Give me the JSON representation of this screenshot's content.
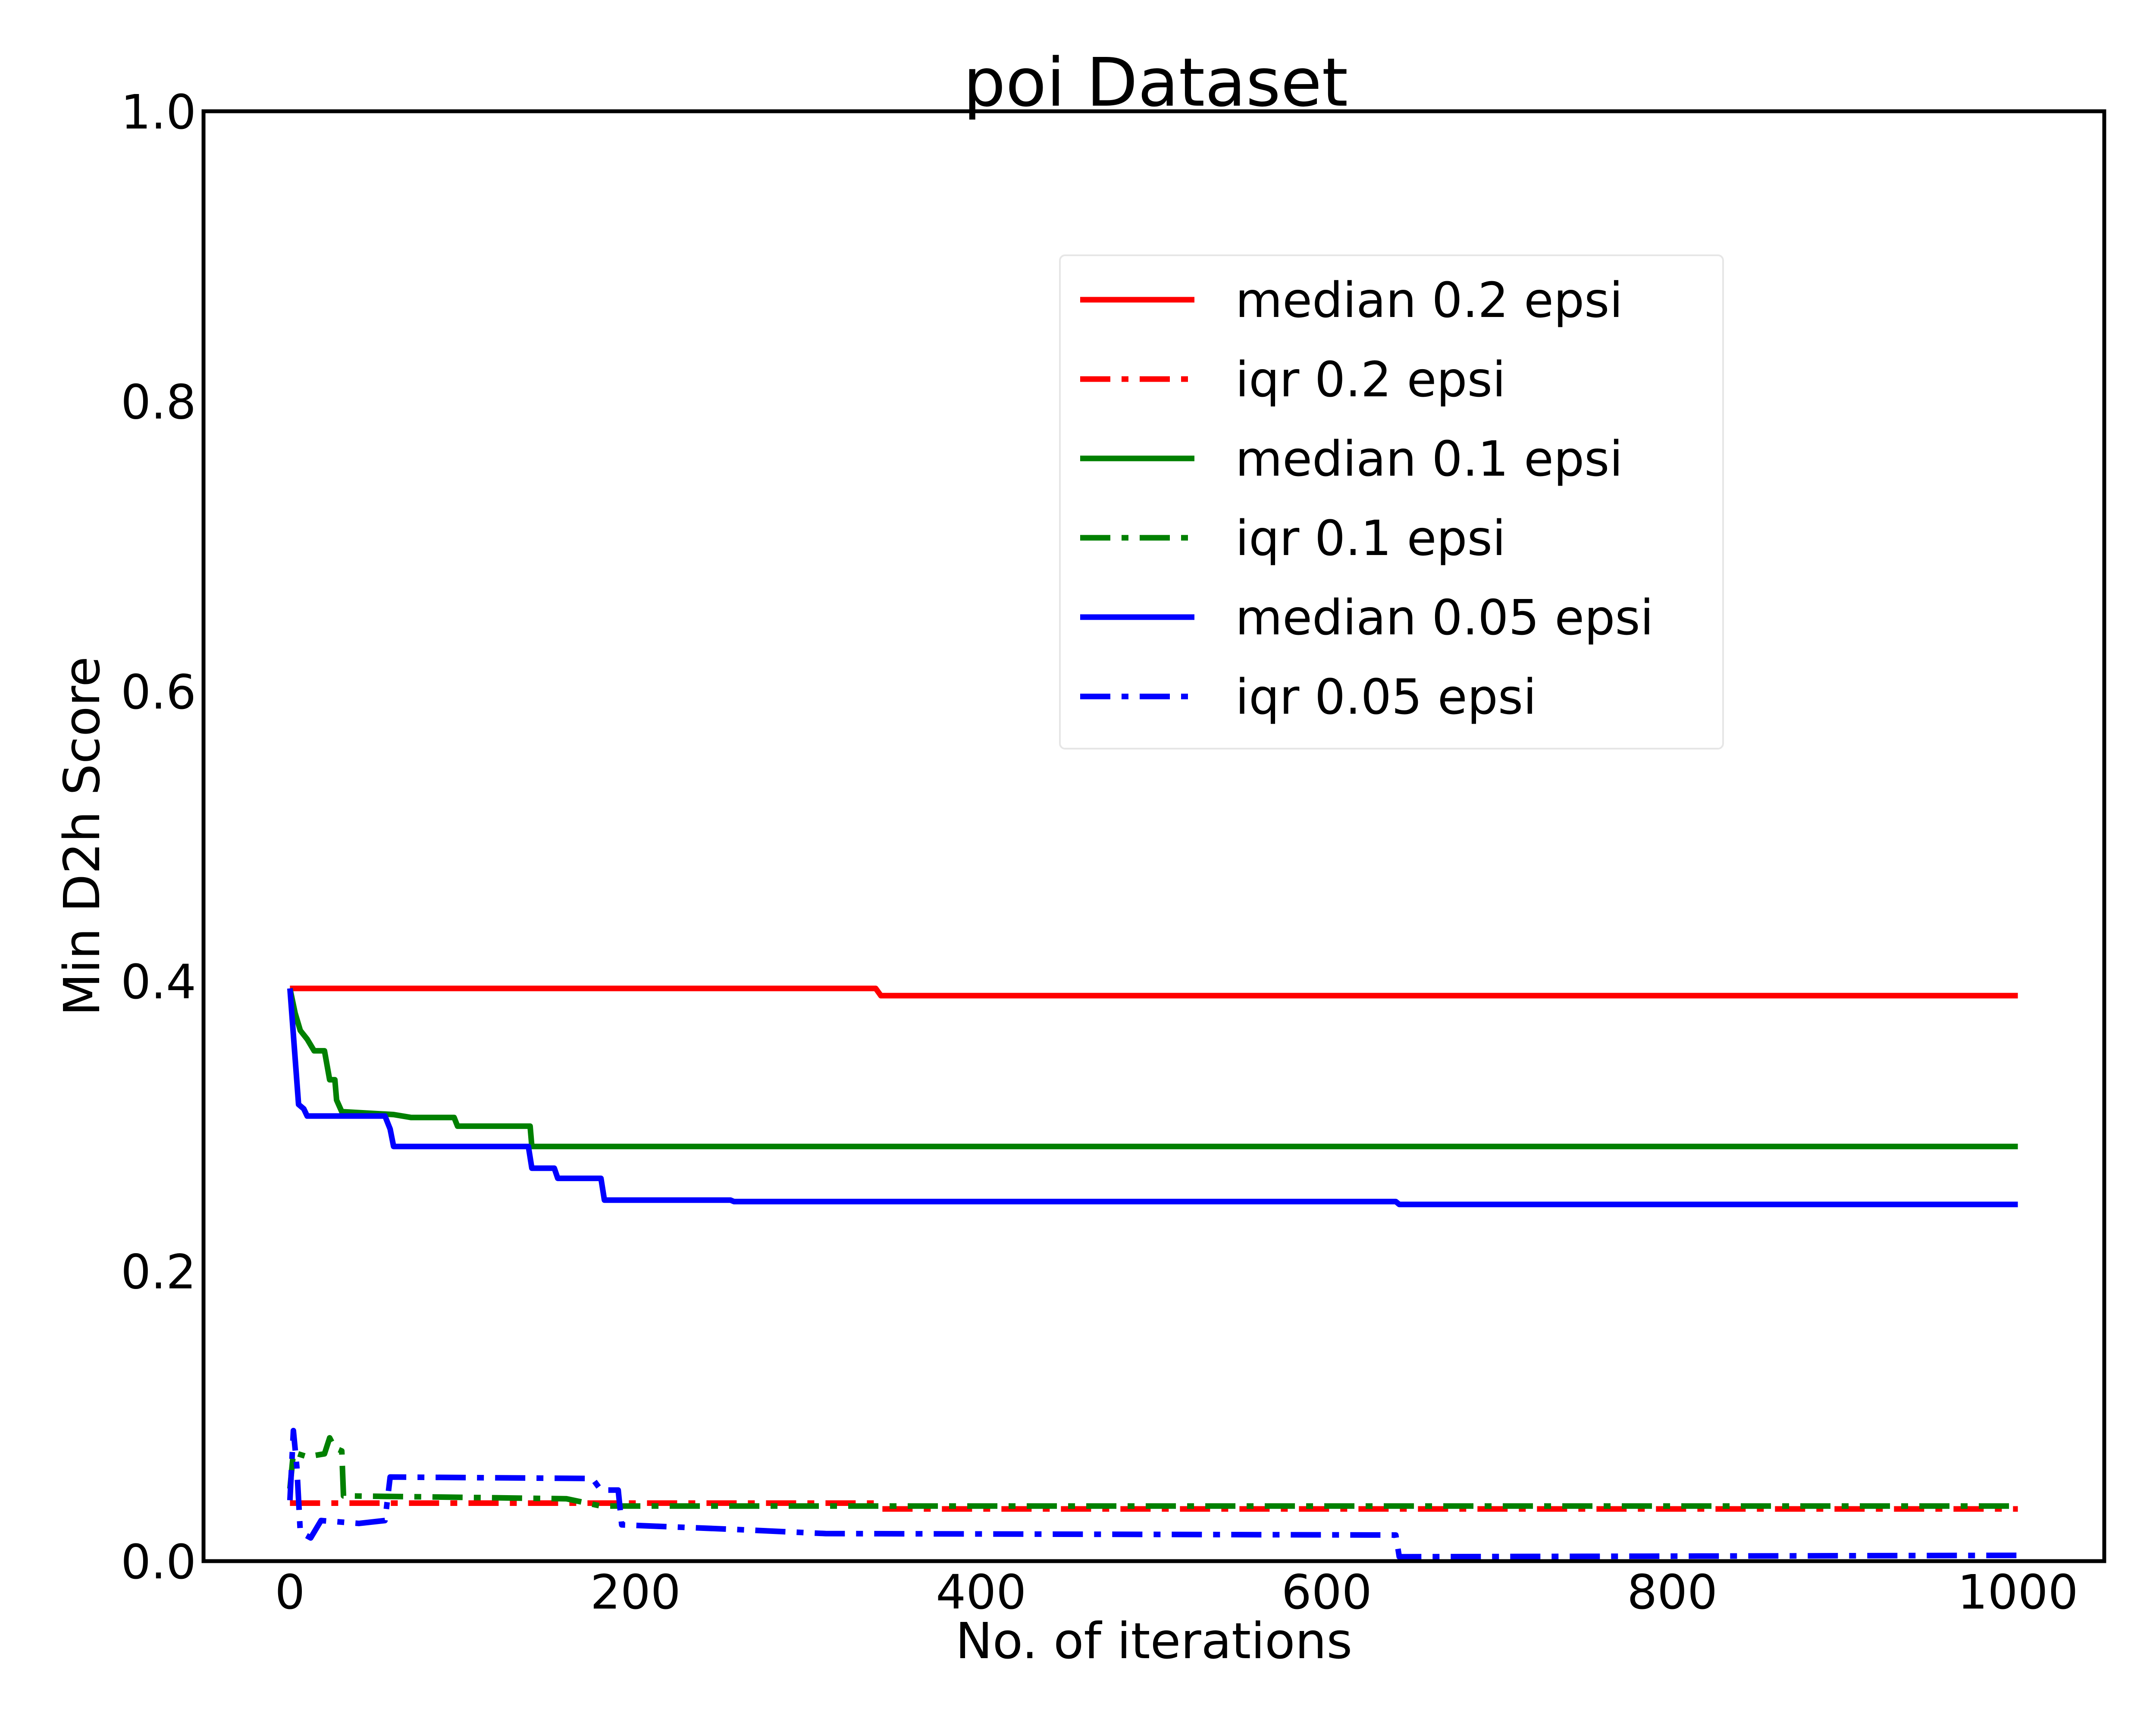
{
  "chart_data": {
    "type": "line",
    "title": "poi Dataset",
    "xlabel": "No. of iterations",
    "ylabel": "Min D2h Score",
    "xlim": [
      -50,
      1050
    ],
    "ylim": [
      0,
      1.0
    ],
    "xticks": [
      0,
      200,
      400,
      600,
      800,
      1000
    ],
    "xtick_labels": [
      "0",
      "200",
      "400",
      "600",
      "800",
      "1000"
    ],
    "yticks": [
      0,
      0.2,
      0.4,
      0.6,
      0.8,
      1.0
    ],
    "ytick_labels": [
      "0.0",
      "0.2",
      "0.4",
      "0.6",
      "0.8",
      "1.0"
    ],
    "grid": false,
    "legend_position": "upper-center",
    "series": [
      {
        "name": "median 0.2 epsi",
        "color": "#ff0000",
        "style": "solid",
        "points": [
          [
            0,
            0.395
          ],
          [
            339,
            0.395
          ],
          [
            342,
            0.39
          ],
          [
            1000,
            0.39
          ]
        ]
      },
      {
        "name": "iqr 0.2 epsi",
        "color": "#ff0000",
        "style": "dashdot",
        "points": [
          [
            0,
            0.04
          ],
          [
            339,
            0.04
          ],
          [
            342,
            0.036
          ],
          [
            1000,
            0.036
          ]
        ]
      },
      {
        "name": "median 0.1 epsi",
        "color": "#008000",
        "style": "solid",
        "points": [
          [
            0,
            0.395
          ],
          [
            3,
            0.378
          ],
          [
            6,
            0.366
          ],
          [
            10,
            0.36
          ],
          [
            14,
            0.352
          ],
          [
            20,
            0.352
          ],
          [
            23,
            0.332
          ],
          [
            26,
            0.332
          ],
          [
            27,
            0.318
          ],
          [
            30,
            0.31
          ],
          [
            60,
            0.308
          ],
          [
            70,
            0.306
          ],
          [
            95,
            0.306
          ],
          [
            97,
            0.3
          ],
          [
            139,
            0.3
          ],
          [
            140,
            0.286
          ],
          [
            1000,
            0.286
          ]
        ]
      },
      {
        "name": "iqr 0.1 epsi",
        "color": "#008000",
        "style": "dashdot",
        "points": [
          [
            0,
            0.05
          ],
          [
            2,
            0.075
          ],
          [
            10,
            0.072
          ],
          [
            20,
            0.074
          ],
          [
            23,
            0.085
          ],
          [
            26,
            0.078
          ],
          [
            30,
            0.076
          ],
          [
            31,
            0.045
          ],
          [
            100,
            0.044
          ],
          [
            160,
            0.043
          ],
          [
            180,
            0.038
          ],
          [
            1000,
            0.038
          ]
        ]
      },
      {
        "name": "median 0.05 epsi",
        "color": "#0000ff",
        "style": "solid",
        "points": [
          [
            0,
            0.395
          ],
          [
            5,
            0.315
          ],
          [
            8,
            0.312
          ],
          [
            10,
            0.307
          ],
          [
            55,
            0.307
          ],
          [
            58,
            0.298
          ],
          [
            60,
            0.286
          ],
          [
            138,
            0.286
          ],
          [
            140,
            0.271
          ],
          [
            153,
            0.271
          ],
          [
            155,
            0.264
          ],
          [
            180,
            0.264
          ],
          [
            182,
            0.249
          ],
          [
            255,
            0.249
          ],
          [
            257,
            0.248
          ],
          [
            640,
            0.248
          ],
          [
            642,
            0.246
          ],
          [
            1000,
            0.246
          ]
        ]
      },
      {
        "name": "iqr 0.05 epsi",
        "color": "#0000ff",
        "style": "dashdot",
        "points": [
          [
            0,
            0.042
          ],
          [
            2,
            0.09
          ],
          [
            4,
            0.065
          ],
          [
            6,
            0.02
          ],
          [
            12,
            0.016
          ],
          [
            18,
            0.028
          ],
          [
            40,
            0.026
          ],
          [
            55,
            0.028
          ],
          [
            58,
            0.058
          ],
          [
            175,
            0.057
          ],
          [
            180,
            0.049
          ],
          [
            190,
            0.049
          ],
          [
            192,
            0.025
          ],
          [
            255,
            0.022
          ],
          [
            310,
            0.019
          ],
          [
            640,
            0.018
          ],
          [
            642,
            0.003
          ],
          [
            1000,
            0.004
          ]
        ]
      }
    ]
  }
}
